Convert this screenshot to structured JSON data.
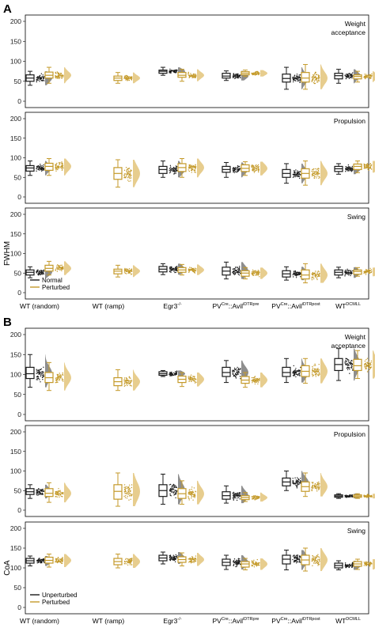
{
  "figure": {
    "panel_a_label": "A",
    "panel_b_label": "B",
    "categories": [
      {
        "main": "WT (random)",
        "sup": ""
      },
      {
        "main": "WT (ramp)",
        "sup": ""
      },
      {
        "main": "Egr3",
        "sup": "-/-"
      },
      {
        "main": "PV",
        "sup": "Cre",
        "main2": "::Avil",
        "sup2": "iDTRpre"
      },
      {
        "main": "PV",
        "sup": "Cre",
        "main2": "::Avil",
        "sup2": "iDTRpost"
      },
      {
        "main": "WT",
        "sup": "DCMLL"
      }
    ]
  },
  "colors": {
    "series1": "#1a1a1a",
    "series1_violin": "#7a7a7a",
    "series2": "#c49a2a",
    "series2_violin": "#e3c47a"
  },
  "chart_data": [
    {
      "type": "box",
      "panel": "A",
      "ylabel": "FWHM",
      "legend": [
        "Normal",
        "Perturbed"
      ],
      "legend_position": "bottom-left of lowest subplot",
      "subplots": [
        {
          "title": "Weight\nacceptance",
          "ylim": [
            0,
            200
          ],
          "yticks": [
            0,
            50,
            100,
            150,
            200
          ],
          "groups": [
            {
              "series": "Normal",
              "cat": 0,
              "q1": 50,
              "med": 58,
              "q3": 66,
              "lo": 40,
              "hi": 75
            },
            {
              "series": "Perturbed",
              "cat": 0,
              "q1": 58,
              "med": 65,
              "q3": 73,
              "lo": 45,
              "hi": 85
            },
            {
              "series": "Perturbed",
              "cat": 1,
              "q1": 52,
              "med": 58,
              "q3": 63,
              "lo": 45,
              "hi": 72
            },
            {
              "series": "Normal",
              "cat": 2,
              "q1": 70,
              "med": 75,
              "q3": 78,
              "lo": 65,
              "hi": 85
            },
            {
              "series": "Perturbed",
              "cat": 2,
              "q1": 60,
              "med": 65,
              "q3": 72,
              "lo": 50,
              "hi": 80
            },
            {
              "series": "Normal",
              "cat": 3,
              "q1": 58,
              "med": 63,
              "q3": 70,
              "lo": 52,
              "hi": 76
            },
            {
              "series": "Perturbed",
              "cat": 3,
              "q1": 66,
              "med": 70,
              "q3": 74,
              "lo": 62,
              "hi": 78
            },
            {
              "series": "Normal",
              "cat": 4,
              "q1": 48,
              "med": 57,
              "q3": 68,
              "lo": 30,
              "hi": 85
            },
            {
              "series": "Perturbed",
              "cat": 4,
              "q1": 48,
              "med": 58,
              "q3": 72,
              "lo": 30,
              "hi": 92
            },
            {
              "series": "Normal",
              "cat": 5,
              "q1": 56,
              "med": 64,
              "q3": 70,
              "lo": 45,
              "hi": 80
            },
            {
              "series": "Perturbed",
              "cat": 5,
              "q1": 56,
              "med": 62,
              "q3": 66,
              "lo": 48,
              "hi": 75
            }
          ]
        },
        {
          "title": "Propulsion",
          "ylim": [
            0,
            200
          ],
          "yticks": [
            0,
            50,
            100,
            150,
            200
          ],
          "groups": [
            {
              "series": "Normal",
              "cat": 0,
              "q1": 66,
              "med": 74,
              "q3": 80,
              "lo": 55,
              "hi": 92
            },
            {
              "series": "Perturbed",
              "cat": 0,
              "q1": 68,
              "med": 78,
              "q3": 86,
              "lo": 55,
              "hi": 98
            },
            {
              "series": "Perturbed",
              "cat": 1,
              "q1": 45,
              "med": 60,
              "q3": 75,
              "lo": 25,
              "hi": 95
            },
            {
              "series": "Normal",
              "cat": 2,
              "q1": 60,
              "med": 70,
              "q3": 78,
              "lo": 50,
              "hi": 92
            },
            {
              "series": "Perturbed",
              "cat": 2,
              "q1": 65,
              "med": 75,
              "q3": 85,
              "lo": 50,
              "hi": 98
            },
            {
              "series": "Normal",
              "cat": 3,
              "q1": 63,
              "med": 70,
              "q3": 78,
              "lo": 50,
              "hi": 88
            },
            {
              "series": "Perturbed",
              "cat": 3,
              "q1": 65,
              "med": 73,
              "q3": 82,
              "lo": 55,
              "hi": 90
            },
            {
              "series": "Normal",
              "cat": 4,
              "q1": 50,
              "med": 60,
              "q3": 70,
              "lo": 35,
              "hi": 85
            },
            {
              "series": "Perturbed",
              "cat": 4,
              "q1": 48,
              "med": 60,
              "q3": 72,
              "lo": 30,
              "hi": 92
            },
            {
              "series": "Normal",
              "cat": 5,
              "q1": 65,
              "med": 72,
              "q3": 78,
              "lo": 58,
              "hi": 85
            },
            {
              "series": "Perturbed",
              "cat": 5,
              "q1": 70,
              "med": 78,
              "q3": 84,
              "lo": 62,
              "hi": 92
            }
          ]
        },
        {
          "title": "Swing",
          "ylim": [
            0,
            200
          ],
          "yticks": [
            0,
            50,
            100,
            150,
            200
          ],
          "groups": [
            {
              "series": "Normal",
              "cat": 0,
              "q1": 45,
              "med": 52,
              "q3": 58,
              "lo": 38,
              "hi": 66
            },
            {
              "series": "Perturbed",
              "cat": 0,
              "q1": 55,
              "med": 62,
              "q3": 70,
              "lo": 45,
              "hi": 80
            },
            {
              "series": "Perturbed",
              "cat": 1,
              "q1": 48,
              "med": 55,
              "q3": 60,
              "lo": 40,
              "hi": 70
            },
            {
              "series": "Normal",
              "cat": 2,
              "q1": 53,
              "med": 60,
              "q3": 67,
              "lo": 46,
              "hi": 74
            },
            {
              "series": "Perturbed",
              "cat": 2,
              "q1": 52,
              "med": 58,
              "q3": 64,
              "lo": 45,
              "hi": 72
            },
            {
              "series": "Normal",
              "cat": 3,
              "q1": 45,
              "med": 55,
              "q3": 65,
              "lo": 35,
              "hi": 78
            },
            {
              "series": "Perturbed",
              "cat": 3,
              "q1": 42,
              "med": 50,
              "q3": 56,
              "lo": 35,
              "hi": 64
            },
            {
              "series": "Normal",
              "cat": 4,
              "q1": 40,
              "med": 48,
              "q3": 56,
              "lo": 32,
              "hi": 66
            },
            {
              "series": "Perturbed",
              "cat": 4,
              "q1": 35,
              "med": 45,
              "q3": 58,
              "lo": 25,
              "hi": 74
            },
            {
              "series": "Normal",
              "cat": 5,
              "q1": 45,
              "med": 52,
              "q3": 58,
              "lo": 38,
              "hi": 65
            },
            {
              "series": "Perturbed",
              "cat": 5,
              "q1": 47,
              "med": 54,
              "q3": 58,
              "lo": 42,
              "hi": 64
            }
          ]
        }
      ]
    },
    {
      "type": "box",
      "panel": "B",
      "ylabel": "CoA",
      "legend": [
        "Unperturbed",
        "Perturbed"
      ],
      "legend_position": "bottom-left of lowest subplot",
      "subplots": [
        {
          "title": "Weight\nacceptance",
          "ylim": [
            0,
            200
          ],
          "yticks": [
            0,
            50,
            100,
            150,
            200
          ],
          "groups": [
            {
              "series": "Normal",
              "cat": 0,
              "q1": 90,
              "med": 102,
              "q3": 118,
              "lo": 68,
              "hi": 150
            },
            {
              "series": "Perturbed",
              "cat": 0,
              "q1": 80,
              "med": 92,
              "q3": 105,
              "lo": 60,
              "hi": 130
            },
            {
              "series": "Perturbed",
              "cat": 1,
              "q1": 72,
              "med": 82,
              "q3": 92,
              "lo": 60,
              "hi": 112
            },
            {
              "series": "Normal",
              "cat": 2,
              "q1": 98,
              "med": 102,
              "q3": 107,
              "lo": 95,
              "hi": 110
            },
            {
              "series": "Perturbed",
              "cat": 2,
              "q1": 80,
              "med": 88,
              "q3": 96,
              "lo": 70,
              "hi": 105
            },
            {
              "series": "Normal",
              "cat": 3,
              "q1": 95,
              "med": 105,
              "q3": 118,
              "lo": 80,
              "hi": 135
            },
            {
              "series": "Perturbed",
              "cat": 3,
              "q1": 78,
              "med": 86,
              "q3": 95,
              "lo": 68,
              "hi": 105
            },
            {
              "series": "Normal",
              "cat": 4,
              "q1": 95,
              "med": 105,
              "q3": 118,
              "lo": 80,
              "hi": 140
            },
            {
              "series": "Perturbed",
              "cat": 4,
              "q1": 95,
              "med": 108,
              "q3": 122,
              "lo": 78,
              "hi": 140
            },
            {
              "series": "Normal",
              "cat": 5,
              "q1": 110,
              "med": 125,
              "q3": 140,
              "lo": 85,
              "hi": 165
            },
            {
              "series": "Perturbed",
              "cat": 5,
              "q1": 110,
              "med": 122,
              "q3": 138,
              "lo": 90,
              "hi": 160
            }
          ]
        },
        {
          "title": "Propulsion",
          "ylim": [
            0,
            200
          ],
          "yticks": [
            0,
            50,
            100,
            150,
            200
          ],
          "groups": [
            {
              "series": "Normal",
              "cat": 0,
              "q1": 40,
              "med": 47,
              "q3": 55,
              "lo": 30,
              "hi": 65
            },
            {
              "series": "Perturbed",
              "cat": 0,
              "q1": 35,
              "med": 43,
              "q3": 55,
              "lo": 20,
              "hi": 70
            },
            {
              "series": "Perturbed",
              "cat": 1,
              "q1": 28,
              "med": 48,
              "q3": 65,
              "lo": 10,
              "hi": 95
            },
            {
              "series": "Normal",
              "cat": 2,
              "q1": 35,
              "med": 50,
              "q3": 65,
              "lo": 15,
              "hi": 92
            },
            {
              "series": "Perturbed",
              "cat": 2,
              "q1": 30,
              "med": 42,
              "q3": 55,
              "lo": 15,
              "hi": 75
            },
            {
              "series": "Normal",
              "cat": 3,
              "q1": 28,
              "med": 37,
              "q3": 47,
              "lo": 18,
              "hi": 62
            },
            {
              "series": "Perturbed",
              "cat": 3,
              "q1": 27,
              "med": 32,
              "q3": 37,
              "lo": 22,
              "hi": 45
            },
            {
              "series": "Normal",
              "cat": 4,
              "q1": 62,
              "med": 72,
              "q3": 82,
              "lo": 50,
              "hi": 100
            },
            {
              "series": "Perturbed",
              "cat": 4,
              "q1": 48,
              "med": 60,
              "q3": 72,
              "lo": 35,
              "hi": 95
            },
            {
              "series": "Normal",
              "cat": 5,
              "q1": 33,
              "med": 36,
              "q3": 39,
              "lo": 30,
              "hi": 42
            },
            {
              "series": "Perturbed",
              "cat": 5,
              "q1": 33,
              "med": 36,
              "q3": 39,
              "lo": 30,
              "hi": 42
            }
          ]
        },
        {
          "title": "Swing",
          "ylim": [
            0,
            200
          ],
          "yticks": [
            0,
            50,
            100,
            150,
            200
          ],
          "groups": [
            {
              "series": "Normal",
              "cat": 0,
              "q1": 112,
              "med": 118,
              "q3": 124,
              "lo": 105,
              "hi": 130
            },
            {
              "series": "Perturbed",
              "cat": 0,
              "q1": 112,
              "med": 119,
              "q3": 127,
              "lo": 102,
              "hi": 135
            },
            {
              "series": "Perturbed",
              "cat": 1,
              "q1": 108,
              "med": 116,
              "q3": 124,
              "lo": 100,
              "hi": 135
            },
            {
              "series": "Normal",
              "cat": 2,
              "q1": 118,
              "med": 125,
              "q3": 132,
              "lo": 110,
              "hi": 140
            },
            {
              "series": "Perturbed",
              "cat": 2,
              "q1": 114,
              "med": 121,
              "q3": 128,
              "lo": 105,
              "hi": 138
            },
            {
              "series": "Normal",
              "cat": 3,
              "q1": 106,
              "med": 114,
              "q3": 122,
              "lo": 96,
              "hi": 132
            },
            {
              "series": "Perturbed",
              "cat": 3,
              "q1": 102,
              "med": 110,
              "q3": 116,
              "lo": 95,
              "hi": 124
            },
            {
              "series": "Normal",
              "cat": 4,
              "q1": 110,
              "med": 122,
              "q3": 132,
              "lo": 95,
              "hi": 145
            },
            {
              "series": "Perturbed",
              "cat": 4,
              "q1": 108,
              "med": 120,
              "q3": 132,
              "lo": 92,
              "hi": 150
            },
            {
              "series": "Normal",
              "cat": 5,
              "q1": 100,
              "med": 106,
              "q3": 112,
              "lo": 95,
              "hi": 118
            },
            {
              "series": "Perturbed",
              "cat": 5,
              "q1": 104,
              "med": 110,
              "q3": 116,
              "lo": 96,
              "hi": 122
            }
          ]
        }
      ]
    }
  ]
}
